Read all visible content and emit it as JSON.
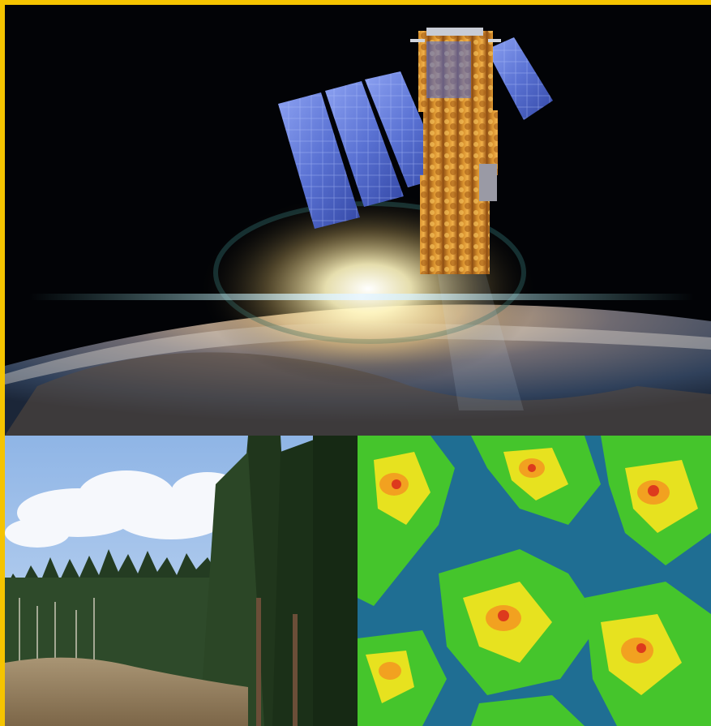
{
  "image": {
    "panels": [
      {
        "id": "top",
        "subject": "satellite-over-earth"
      },
      {
        "id": "bottom-left",
        "subject": "forest-photo"
      },
      {
        "id": "bottom-right",
        "subject": "vegetation-index-map"
      }
    ],
    "colors": {
      "border": "#f5c400",
      "space": "#020306",
      "solar_panel": "#5d76d8",
      "satellite_body": "#c8781c",
      "map_water": "#1f6e93",
      "map_green": "#45c52c",
      "map_yellow": "#e7e21f",
      "map_orange": "#f2a120",
      "map_red": "#dd3a1d"
    }
  }
}
